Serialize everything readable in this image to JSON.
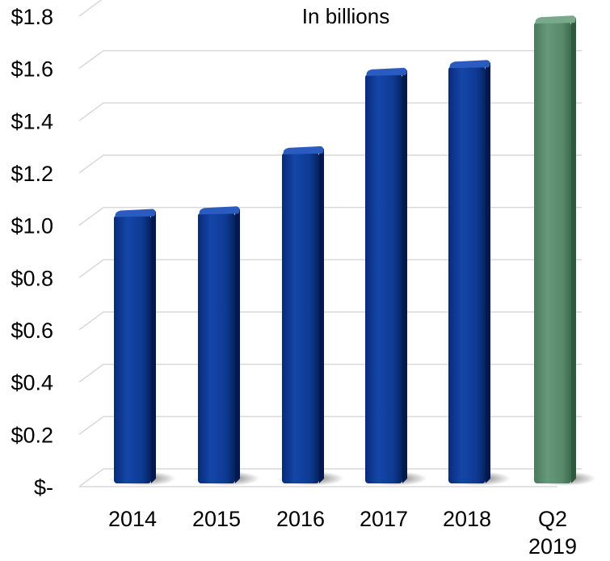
{
  "chart_data": {
    "type": "bar",
    "subtitle": "In billions",
    "categories": [
      "2014",
      "2015",
      "2016",
      "2017",
      "2018",
      "Q2\n2019"
    ],
    "values": [
      1.05,
      1.06,
      1.29,
      1.59,
      1.62,
      1.79
    ],
    "y_tick_labels": [
      "$-",
      "$0.2",
      "$0.4",
      "$0.6",
      "$0.8",
      "$1.0",
      "$1.2",
      "$1.4",
      "$1.6",
      "$1.8"
    ],
    "ylim": [
      0,
      1.8
    ],
    "grid": true,
    "colors": {
      "bar": "#0d3591",
      "highlight_bar": "#5a8a6c",
      "gridline": "#d9d9d9"
    },
    "highlight_index": 5
  }
}
